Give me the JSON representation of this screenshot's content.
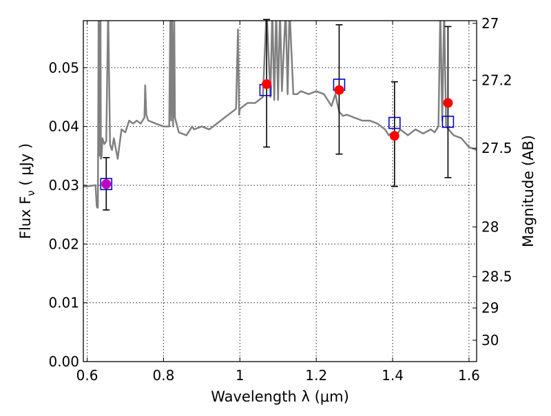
{
  "chart_data": {
    "type": "scatter",
    "xlabel": "Wavelength  λ (μm)",
    "ylabel": "Flux  F_ν  ( μJy )",
    "y2label": "Magnitude (AB)",
    "xlim": [
      0.59,
      1.62
    ],
    "ylim": [
      0.0,
      0.058
    ],
    "grid": true,
    "x_ticks": [
      0.6,
      0.8,
      1.0,
      1.2,
      1.4,
      1.6
    ],
    "x_tick_labels": [
      "0.6",
      "0.8",
      "1",
      "1.2",
      "1.4",
      "1.6"
    ],
    "y_ticks": [
      0.0,
      0.01,
      0.02,
      0.03,
      0.04,
      0.05
    ],
    "y_tick_labels": [
      "0.00",
      "0.01",
      "0.02",
      "0.03",
      "0.04",
      "0.05"
    ],
    "y2_ticks": [
      27,
      27.2,
      27.5,
      28,
      28.5,
      29,
      30
    ],
    "y2_tick_labels": [
      "27",
      "27.2",
      "27.5",
      "28",
      "28.5",
      "29",
      "30"
    ],
    "template_spectrum": {
      "color": "#808080",
      "x": [
        0.59,
        0.6,
        0.61,
        0.62,
        0.622,
        0.625,
        0.626,
        0.628,
        0.63,
        0.632,
        0.635,
        0.636,
        0.638,
        0.64,
        0.645,
        0.65,
        0.655,
        0.66,
        0.662,
        0.665,
        0.67,
        0.68,
        0.69,
        0.7,
        0.71,
        0.72,
        0.73,
        0.74,
        0.75,
        0.752,
        0.755,
        0.76,
        0.78,
        0.8,
        0.815,
        0.818,
        0.82,
        0.822,
        0.825,
        0.828,
        0.83,
        0.84,
        0.86,
        0.87,
        0.875,
        0.88,
        0.9,
        0.92,
        0.94,
        0.96,
        0.98,
        0.99,
        0.995,
        0.998,
        1.0,
        1.02,
        1.04,
        1.06,
        1.07,
        1.08,
        1.085,
        1.09,
        1.095,
        1.1,
        1.105,
        1.11,
        1.12,
        1.125,
        1.13,
        1.14,
        1.15,
        1.16,
        1.18,
        1.2,
        1.22,
        1.24,
        1.25,
        1.26,
        1.27,
        1.28,
        1.3,
        1.32,
        1.34,
        1.36,
        1.38,
        1.39,
        1.4,
        1.41,
        1.42,
        1.44,
        1.46,
        1.48,
        1.5,
        1.51,
        1.52,
        1.525,
        1.53,
        1.535,
        1.54,
        1.56,
        1.58,
        1.6,
        1.62
      ],
      "y": [
        0.0298,
        0.0298,
        0.0299,
        0.03,
        0.03,
        0.0265,
        0.0262,
        0.0262,
        0.06,
        0.035,
        0.06,
        0.0345,
        0.035,
        0.038,
        0.037,
        0.0375,
        0.06,
        0.037,
        0.0365,
        0.036,
        0.038,
        0.0345,
        0.0395,
        0.039,
        0.041,
        0.0405,
        0.041,
        0.0405,
        0.0415,
        0.047,
        0.042,
        0.041,
        0.0405,
        0.04,
        0.04,
        0.06,
        0.041,
        0.06,
        0.04,
        0.06,
        0.0415,
        0.039,
        0.0385,
        0.0395,
        0.04,
        0.0395,
        0.04,
        0.0395,
        0.0405,
        0.0415,
        0.0425,
        0.043,
        0.0565,
        0.042,
        0.043,
        0.044,
        0.044,
        0.045,
        0.06,
        0.045,
        0.06,
        0.0445,
        0.06,
        0.0445,
        0.06,
        0.046,
        0.06,
        0.0455,
        0.06,
        0.0455,
        0.0455,
        0.046,
        0.0455,
        0.046,
        0.0455,
        0.0435,
        0.0455,
        0.0425,
        0.0418,
        0.042,
        0.0415,
        0.041,
        0.041,
        0.0405,
        0.0395,
        0.0385,
        0.039,
        0.0385,
        0.0395,
        0.0385,
        0.0395,
        0.0388,
        0.0395,
        0.039,
        0.04,
        0.06,
        0.041,
        0.06,
        0.04,
        0.0385,
        0.038,
        0.0365,
        0.036
      ]
    },
    "series": [
      {
        "marker": "square",
        "color": "#0000cc",
        "x": [
          0.65,
          1.067,
          1.26,
          1.405,
          1.545
        ],
        "y": [
          0.0302,
          0.0462,
          0.0471,
          0.0406,
          0.0408
        ]
      },
      {
        "marker": "circle",
        "color": "#ff0000",
        "x": [
          0.65,
          1.07,
          1.26,
          1.405,
          1.545
        ],
        "y": [
          0.0302,
          0.0472,
          0.0462,
          0.0384,
          0.044
        ],
        "yerr_low": [
          0.0258,
          0.0365,
          0.0353,
          0.0298,
          0.0313
        ],
        "yerr_high": [
          0.0347,
          0.0582,
          0.0573,
          0.0476,
          0.057
        ],
        "point_colors": [
          "#bf00bf",
          "#ff0000",
          "#ff0000",
          "#ff0000",
          "#ff0000"
        ]
      }
    ]
  }
}
